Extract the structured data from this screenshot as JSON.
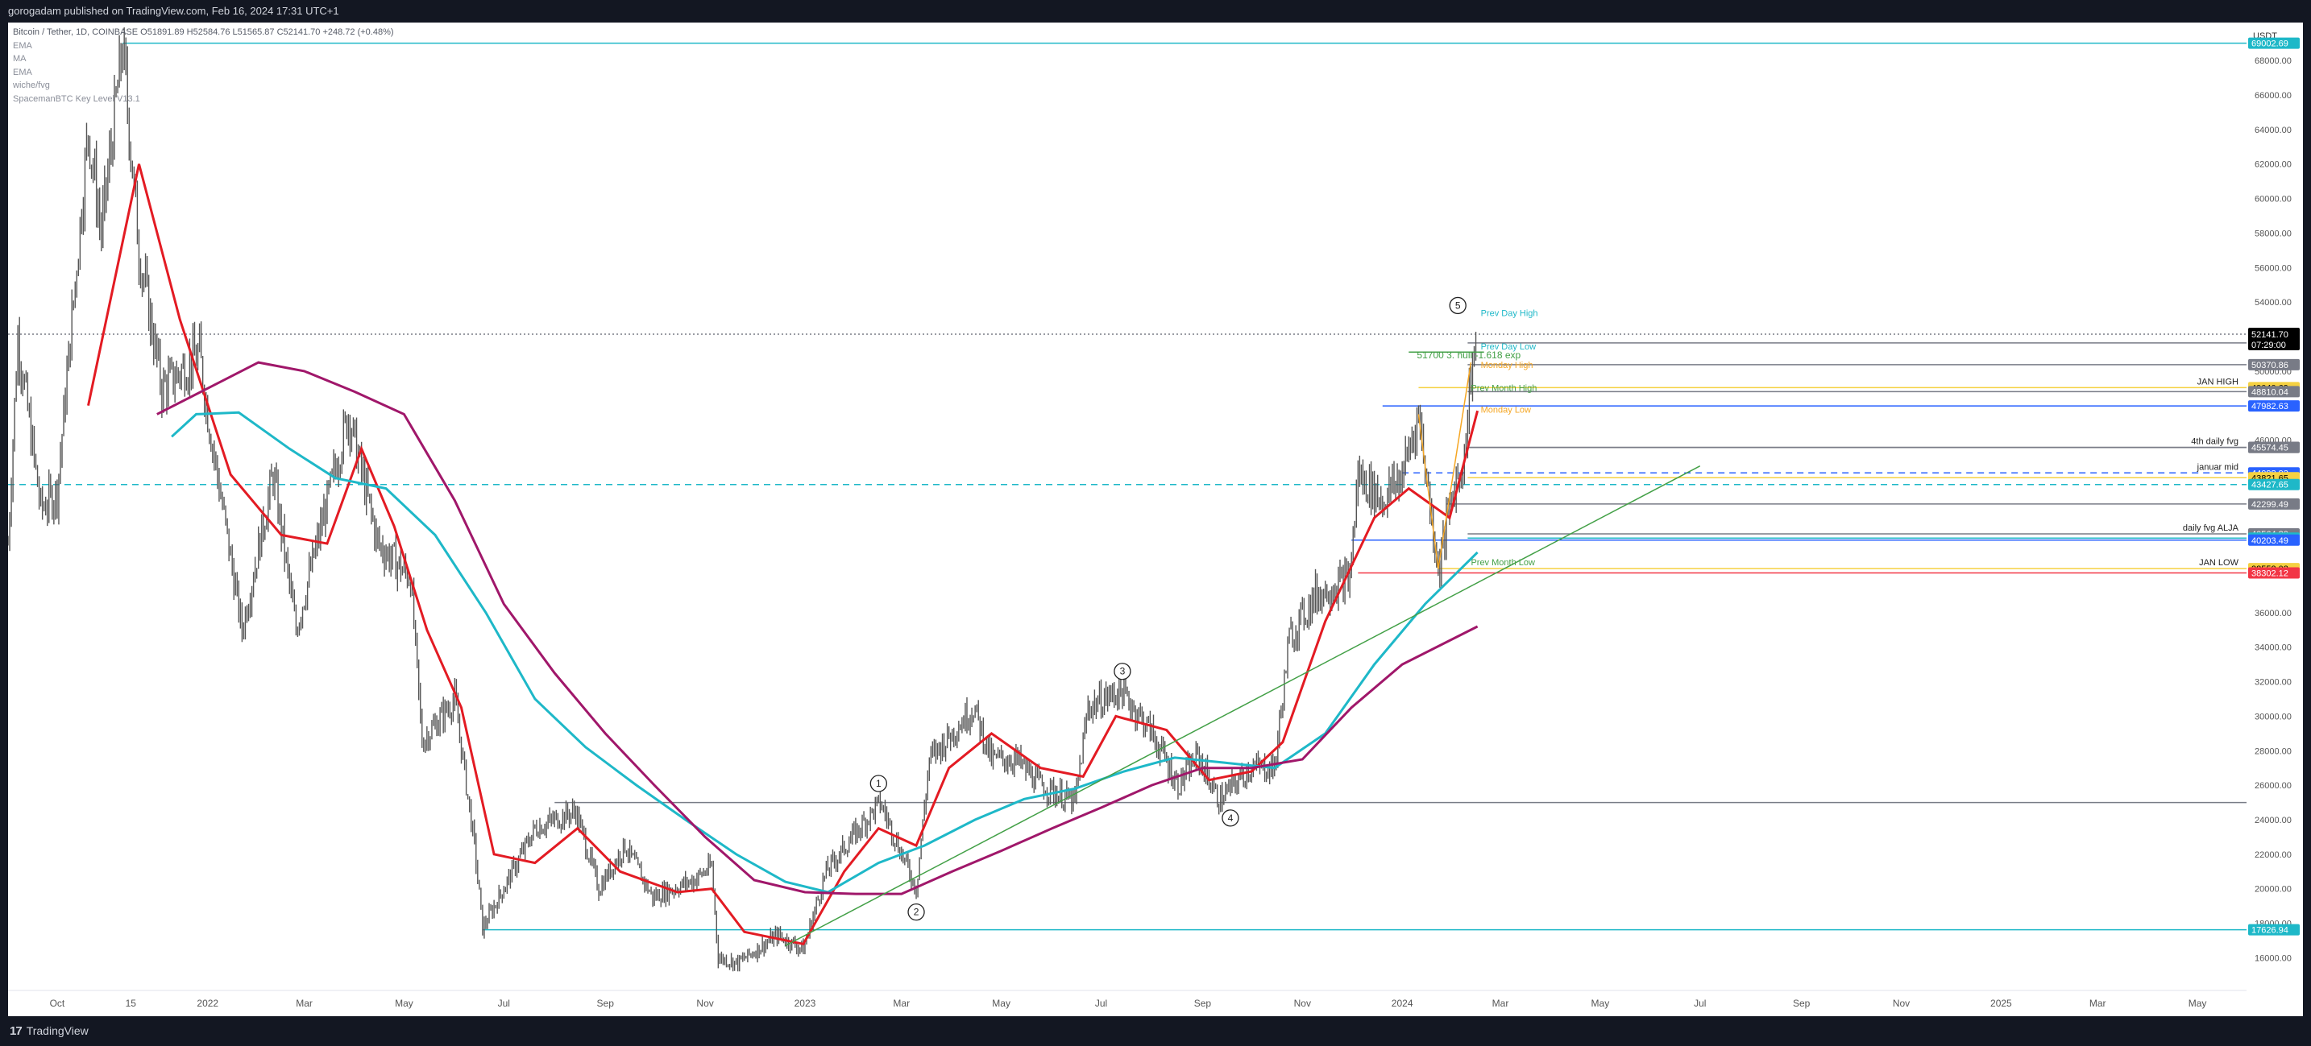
{
  "header": {
    "publisher": "gorogadam published on TradingView.com, Feb 16, 2024 17:31 UTC+1"
  },
  "legend": {
    "symbol": "Bitcoin / Tether, 1D, COINBASE",
    "ohlc": "O51891.89 H52584.76 L51565.87 C52141.70 +248.72 (+0.48%)",
    "indicators": [
      "EMA",
      "MA",
      "EMA",
      "wiche/fvg",
      "SpacemanBTC Key Level V13.1"
    ]
  },
  "footer": {
    "brand": "TradingView",
    "logo_icon": "tradingview-logo-icon"
  },
  "colors": {
    "price": "#555555",
    "ema_fast": "#e31b23",
    "ma": "#1eb8c8",
    "ema_slow": "#a0176a",
    "level_cyan": "#1eb8c8",
    "level_blue": "#2962ff",
    "level_gray": "#787b86",
    "level_yellow": "#f5d142",
    "trend_green": "#43a047",
    "wave_orange": "#f5a623",
    "last_price_bg": "#000000",
    "red_label": "#f23645"
  },
  "chart_data": {
    "type": "candlestick",
    "ylabel": "USDT",
    "ylim": [
      14200,
      70200
    ],
    "xlim": [
      "2021-09-01",
      "2025-05-31"
    ],
    "grid": false,
    "last_price": {
      "value": "52141.70",
      "countdown": "07:29:00"
    },
    "x_ticks": [
      {
        "label": "Oct",
        "date": "2021-10-01"
      },
      {
        "label": "15",
        "date": "2021-11-15"
      },
      {
        "label": "2022",
        "date": "2022-01-01"
      },
      {
        "label": "Mar",
        "date": "2022-03-01"
      },
      {
        "label": "May",
        "date": "2022-05-01"
      },
      {
        "label": "Jul",
        "date": "2022-07-01"
      },
      {
        "label": "Sep",
        "date": "2022-09-01"
      },
      {
        "label": "Nov",
        "date": "2022-11-01"
      },
      {
        "label": "2023",
        "date": "2023-01-01"
      },
      {
        "label": "Mar",
        "date": "2023-03-01"
      },
      {
        "label": "May",
        "date": "2023-05-01"
      },
      {
        "label": "Jul",
        "date": "2023-07-01"
      },
      {
        "label": "Sep",
        "date": "2023-09-01"
      },
      {
        "label": "Nov",
        "date": "2023-11-01"
      },
      {
        "label": "2024",
        "date": "2024-01-01"
      },
      {
        "label": "Mar",
        "date": "2024-03-01"
      },
      {
        "label": "May",
        "date": "2024-05-01"
      },
      {
        "label": "Jul",
        "date": "2024-07-01"
      },
      {
        "label": "Sep",
        "date": "2024-09-01"
      },
      {
        "label": "Nov",
        "date": "2024-11-01"
      },
      {
        "label": "2025",
        "date": "2025-01-01"
      },
      {
        "label": "Mar",
        "date": "2025-03-01"
      },
      {
        "label": "May",
        "date": "2025-05-01"
      }
    ],
    "y_ticks": [
      {
        "label": "68000.00",
        "value": 68000
      },
      {
        "label": "66000.00",
        "value": 66000
      },
      {
        "label": "64000.00",
        "value": 64000
      },
      {
        "label": "62000.00",
        "value": 62000
      },
      {
        "label": "60000.00",
        "value": 60000
      },
      {
        "label": "58000.00",
        "value": 58000
      },
      {
        "label": "56000.00",
        "value": 56000
      },
      {
        "label": "54000.00",
        "value": 54000
      },
      {
        "label": "50000.00",
        "value": 50000
      },
      {
        "label": "48000.00",
        "value": 48000
      },
      {
        "label": "46000.00",
        "value": 46000
      },
      {
        "label": "44000.00",
        "value": 44000
      },
      {
        "label": "36000.00",
        "value": 36000
      },
      {
        "label": "34000.00",
        "value": 34000
      },
      {
        "label": "32000.00",
        "value": 32000
      },
      {
        "label": "30000.00",
        "value": 30000
      },
      {
        "label": "28000.00",
        "value": 28000
      },
      {
        "label": "26000.00",
        "value": 26000
      },
      {
        "label": "24000.00",
        "value": 24000
      },
      {
        "label": "22000.00",
        "value": 22000
      },
      {
        "label": "20000.00",
        "value": 20000
      },
      {
        "label": "18000.00",
        "value": 18000
      },
      {
        "label": "16000.00",
        "value": 16000
      }
    ],
    "price_path": [
      [
        "2021-09-01",
        40000
      ],
      [
        "2021-09-07",
        52000
      ],
      [
        "2021-09-21",
        42000
      ],
      [
        "2021-10-01",
        43000
      ],
      [
        "2021-10-20",
        64000
      ],
      [
        "2021-10-28",
        58000
      ],
      [
        "2021-11-10",
        68900
      ],
      [
        "2021-11-20",
        57000
      ],
      [
        "2021-12-04",
        49000
      ],
      [
        "2021-12-27",
        51000
      ],
      [
        "2022-01-01",
        47500
      ],
      [
        "2022-01-22",
        35000
      ],
      [
        "2022-02-10",
        44000
      ],
      [
        "2022-02-24",
        35000
      ],
      [
        "2022-03-28",
        47500
      ],
      [
        "2022-04-15",
        40000
      ],
      [
        "2022-05-05",
        38000
      ],
      [
        "2022-05-12",
        28500
      ],
      [
        "2022-06-01",
        31000
      ],
      [
        "2022-06-13",
        22500
      ],
      [
        "2022-06-18",
        17700
      ],
      [
        "2022-07-20",
        23500
      ],
      [
        "2022-08-14",
        24500
      ],
      [
        "2022-08-28",
        20000
      ],
      [
        "2022-09-13",
        22500
      ],
      [
        "2022-09-30",
        19500
      ],
      [
        "2022-10-25",
        20500
      ],
      [
        "2022-11-05",
        21300
      ],
      [
        "2022-11-09",
        16000
      ],
      [
        "2022-11-21",
        15700
      ],
      [
        "2022-12-15",
        17300
      ],
      [
        "2022-12-31",
        16500
      ],
      [
        "2023-01-14",
        21000
      ],
      [
        "2023-01-30",
        23000
      ],
      [
        "2023-02-16",
        25000
      ],
      [
        "2023-03-10",
        20000
      ],
      [
        "2023-03-18",
        27500
      ],
      [
        "2023-04-14",
        30500
      ],
      [
        "2023-04-25",
        27500
      ],
      [
        "2023-05-10",
        27500
      ],
      [
        "2023-05-25",
        26000
      ],
      [
        "2023-06-15",
        25000
      ],
      [
        "2023-06-23",
        30500
      ],
      [
        "2023-07-13",
        31500
      ],
      [
        "2023-07-31",
        29200
      ],
      [
        "2023-08-17",
        26000
      ],
      [
        "2023-08-29",
        27700
      ],
      [
        "2023-09-11",
        25100
      ],
      [
        "2023-09-30",
        27000
      ],
      [
        "2023-10-15",
        27000
      ],
      [
        "2023-10-24",
        34500
      ],
      [
        "2023-11-09",
        37000
      ],
      [
        "2023-11-30",
        38000
      ],
      [
        "2023-12-05",
        44000
      ],
      [
        "2023-12-20",
        42500
      ],
      [
        "2024-01-01",
        44000
      ],
      [
        "2024-01-11",
        47500
      ],
      [
        "2024-01-23",
        38550
      ],
      [
        "2024-02-01",
        43000
      ],
      [
        "2024-02-08",
        45000
      ],
      [
        "2024-02-12",
        50000
      ],
      [
        "2024-02-16",
        52140
      ]
    ],
    "series": [
      {
        "name": "EMA",
        "color_key": "ema_fast",
        "points": [
          [
            "2021-10-20",
            48000
          ],
          [
            "2021-11-20",
            62000
          ],
          [
            "2021-12-15",
            53000
          ],
          [
            "2022-01-15",
            44000
          ],
          [
            "2022-02-15",
            40500
          ],
          [
            "2022-03-15",
            40000
          ],
          [
            "2022-04-05",
            45500
          ],
          [
            "2022-04-25",
            41000
          ],
          [
            "2022-05-15",
            35000
          ],
          [
            "2022-06-05",
            30500
          ],
          [
            "2022-06-25",
            22000
          ],
          [
            "2022-07-20",
            21500
          ],
          [
            "2022-08-15",
            23500
          ],
          [
            "2022-09-10",
            21000
          ],
          [
            "2022-10-15",
            19800
          ],
          [
            "2022-11-05",
            20000
          ],
          [
            "2022-11-25",
            17500
          ],
          [
            "2022-12-31",
            16800
          ],
          [
            "2023-01-25",
            21000
          ],
          [
            "2023-02-15",
            23500
          ],
          [
            "2023-03-10",
            22500
          ],
          [
            "2023-03-30",
            27000
          ],
          [
            "2023-04-25",
            29000
          ],
          [
            "2023-05-25",
            27000
          ],
          [
            "2023-06-20",
            26500
          ],
          [
            "2023-07-10",
            30000
          ],
          [
            "2023-08-10",
            29200
          ],
          [
            "2023-09-05",
            26300
          ],
          [
            "2023-10-01",
            26800
          ],
          [
            "2023-10-20",
            28500
          ],
          [
            "2023-11-15",
            35500
          ],
          [
            "2023-12-15",
            41500
          ],
          [
            "2024-01-05",
            43200
          ],
          [
            "2024-01-30",
            41500
          ],
          [
            "2024-02-16",
            47700
          ]
        ]
      },
      {
        "name": "MA",
        "color_key": "ma",
        "points": [
          [
            "2021-12-10",
            46200
          ],
          [
            "2021-12-25",
            47500
          ],
          [
            "2022-01-20",
            47600
          ],
          [
            "2022-02-20",
            45500
          ],
          [
            "2022-03-20",
            43800
          ],
          [
            "2022-04-20",
            43200
          ],
          [
            "2022-05-20",
            40500
          ],
          [
            "2022-06-20",
            36000
          ],
          [
            "2022-07-20",
            31000
          ],
          [
            "2022-08-20",
            28200
          ],
          [
            "2022-09-20",
            26000
          ],
          [
            "2022-10-20",
            24000
          ],
          [
            "2022-11-20",
            22000
          ],
          [
            "2022-12-20",
            20400
          ],
          [
            "2023-01-15",
            19800
          ],
          [
            "2023-02-15",
            21500
          ],
          [
            "2023-03-15",
            22500
          ],
          [
            "2023-04-15",
            24000
          ],
          [
            "2023-05-15",
            25200
          ],
          [
            "2023-06-15",
            25800
          ],
          [
            "2023-07-15",
            26800
          ],
          [
            "2023-08-15",
            27600
          ],
          [
            "2023-09-15",
            27300
          ],
          [
            "2023-10-15",
            27000
          ],
          [
            "2023-11-15",
            29000
          ],
          [
            "2023-12-15",
            33000
          ],
          [
            "2024-01-15",
            36500
          ],
          [
            "2024-02-16",
            39500
          ]
        ]
      },
      {
        "name": "EMA",
        "color_key": "ema_slow",
        "points": [
          [
            "2021-12-01",
            47500
          ],
          [
            "2022-01-01",
            49000
          ],
          [
            "2022-02-01",
            50500
          ],
          [
            "2022-03-01",
            50000
          ],
          [
            "2022-04-01",
            48800
          ],
          [
            "2022-05-01",
            47500
          ],
          [
            "2022-06-01",
            42500
          ],
          [
            "2022-07-01",
            36500
          ],
          [
            "2022-08-01",
            32500
          ],
          [
            "2022-09-01",
            29000
          ],
          [
            "2022-10-01",
            26000
          ],
          [
            "2022-11-01",
            23000
          ],
          [
            "2022-12-01",
            20500
          ],
          [
            "2023-01-01",
            19800
          ],
          [
            "2023-02-01",
            19700
          ],
          [
            "2023-03-01",
            19700
          ],
          [
            "2023-04-01",
            21000
          ],
          [
            "2023-05-01",
            22200
          ],
          [
            "2023-06-01",
            23500
          ],
          [
            "2023-07-01",
            24700
          ],
          [
            "2023-08-01",
            26000
          ],
          [
            "2023-09-01",
            27000
          ],
          [
            "2023-10-01",
            27000
          ],
          [
            "2023-11-01",
            27500
          ],
          [
            "2023-12-01",
            30500
          ],
          [
            "2024-01-01",
            33000
          ],
          [
            "2024-02-16",
            35200
          ]
        ]
      }
    ],
    "levels": [
      {
        "value": 69002.69,
        "label": "69002.69",
        "color_key": "level_cyan",
        "start": "2021-11-10",
        "style": "solid"
      },
      {
        "value": 51632.14,
        "label": "51632.14",
        "color_key": "level_gray",
        "start": "2024-02-10",
        "style": "solid"
      },
      {
        "value": 50370.86,
        "label": "50370.86",
        "color_key": "level_gray",
        "start": "2024-02-10",
        "style": "solid"
      },
      {
        "value": 49040.69,
        "label": "49040.69",
        "color_key": "level_yellow",
        "start": "2024-01-11",
        "style": "solid",
        "text": "JAN HIGH"
      },
      {
        "value": 48810.04,
        "label": "48810.04",
        "color_key": "level_gray",
        "start": "2024-02-10",
        "style": "solid"
      },
      {
        "value": 47982.63,
        "label": "47982.63",
        "color_key": "level_blue",
        "start": "2023-12-20",
        "style": "solid"
      },
      {
        "value": 45581.56,
        "label": "45581.56",
        "color_key": "level_gray",
        "start": "2024-02-10",
        "style": "solid",
        "text": "4th daily fvg"
      },
      {
        "value": 45574.45,
        "label": "45574.45",
        "color_key": "level_gray",
        "start": "2024-02-10",
        "style": "solid"
      },
      {
        "value": 44098.93,
        "label": "44098.93",
        "color_key": "level_blue",
        "start": "2024-01-01",
        "style": "dashed",
        "text": "januar mid"
      },
      {
        "value": 43821.65,
        "label": "43821.65",
        "color_key": "level_yellow",
        "start": "2024-02-10",
        "style": "solid"
      },
      {
        "value": 43427.65,
        "label": "43427.65",
        "color_key": "level_cyan",
        "start": "2021-09-01",
        "style": "dashed"
      },
      {
        "value": 42299.49,
        "label": "42299.49",
        "color_key": "level_gray",
        "start": "2024-01-28",
        "style": "solid"
      },
      {
        "value": 40564.8,
        "label": "40564.80",
        "color_key": "level_gray",
        "start": "2024-02-10",
        "style": "solid",
        "text": "daily fvg ALJA"
      },
      {
        "value": 40322.56,
        "label": "40322.56",
        "color_key": "level_cyan",
        "start": "2024-02-10",
        "style": "solid"
      },
      {
        "value": 40203.49,
        "label": "40203.49",
        "color_key": "level_blue",
        "start": "2023-12-01",
        "style": "solid"
      },
      {
        "value": 38552.03,
        "label": "38552.03",
        "color_key": "level_yellow",
        "start": "2024-01-23",
        "style": "solid",
        "text": "JAN LOW"
      },
      {
        "value": 38302.12,
        "label": "38302.12",
        "color_key": "red_label",
        "start": "2023-12-05",
        "style": "solid"
      },
      {
        "value": 17626.94,
        "label": "17626.94",
        "color_key": "level_cyan",
        "start": "2022-06-18",
        "style": "solid"
      }
    ],
    "long_lines": [
      {
        "value": 52141.7,
        "color_key": "level_gray",
        "start": "2021-09-01",
        "style": "dotted"
      },
      {
        "value": 25000,
        "color_key": "level_gray",
        "start": "2022-08-01",
        "style": "solid"
      }
    ],
    "level_texts": [
      {
        "text": "Prev Day High",
        "date": "2024-02-18",
        "value": 53200,
        "color": "#1eb8c8"
      },
      {
        "text": "Prev Day Low",
        "date": "2024-02-18",
        "value": 51250,
        "color": "#1eb8c8"
      },
      {
        "text": "Monday High",
        "date": "2024-02-18",
        "value": 50180,
        "color": "#f5a623"
      },
      {
        "text": "Prev Month High",
        "date": "2024-02-12",
        "value": 48850,
        "color": "#43a047"
      },
      {
        "text": "Monday Low",
        "date": "2024-02-18",
        "value": 47580,
        "color": "#f5a623"
      },
      {
        "text": "Prev Month Low",
        "date": "2024-02-12",
        "value": 38750,
        "color": "#43a047"
      }
    ],
    "annotations": [
      {
        "text": "51700 3. hull -1.618 exp",
        "date": "2024-01-10",
        "value": 50750,
        "color": "#43a047"
      }
    ],
    "waves": [
      {
        "label": "1",
        "date": "2023-02-15",
        "value": 26100
      },
      {
        "label": "2",
        "date": "2023-03-10",
        "value": 18650
      },
      {
        "label": "3",
        "date": "2023-07-14",
        "value": 32600
      },
      {
        "label": "4",
        "date": "2023-09-18",
        "value": 24100
      },
      {
        "label": "5",
        "date": "2024-02-04",
        "value": 53800
      }
    ],
    "trendlines": [
      {
        "color_key": "trend_green",
        "from": [
          "2022-12-20",
          16700
        ],
        "to": [
          "2024-07-01",
          44500
        ]
      },
      {
        "color_key": "trend_green",
        "from": [
          "2024-01-05",
          51100
        ],
        "to": [
          "2024-02-20",
          51100
        ]
      },
      {
        "color_key": "wave_orange",
        "from": [
          "2024-01-11",
          47500
        ],
        "to": [
          "2024-01-23",
          38550
        ]
      },
      {
        "color_key": "wave_orange",
        "from": [
          "2024-01-23",
          38550
        ],
        "to": [
          "2024-02-12",
          50500
        ]
      }
    ]
  }
}
